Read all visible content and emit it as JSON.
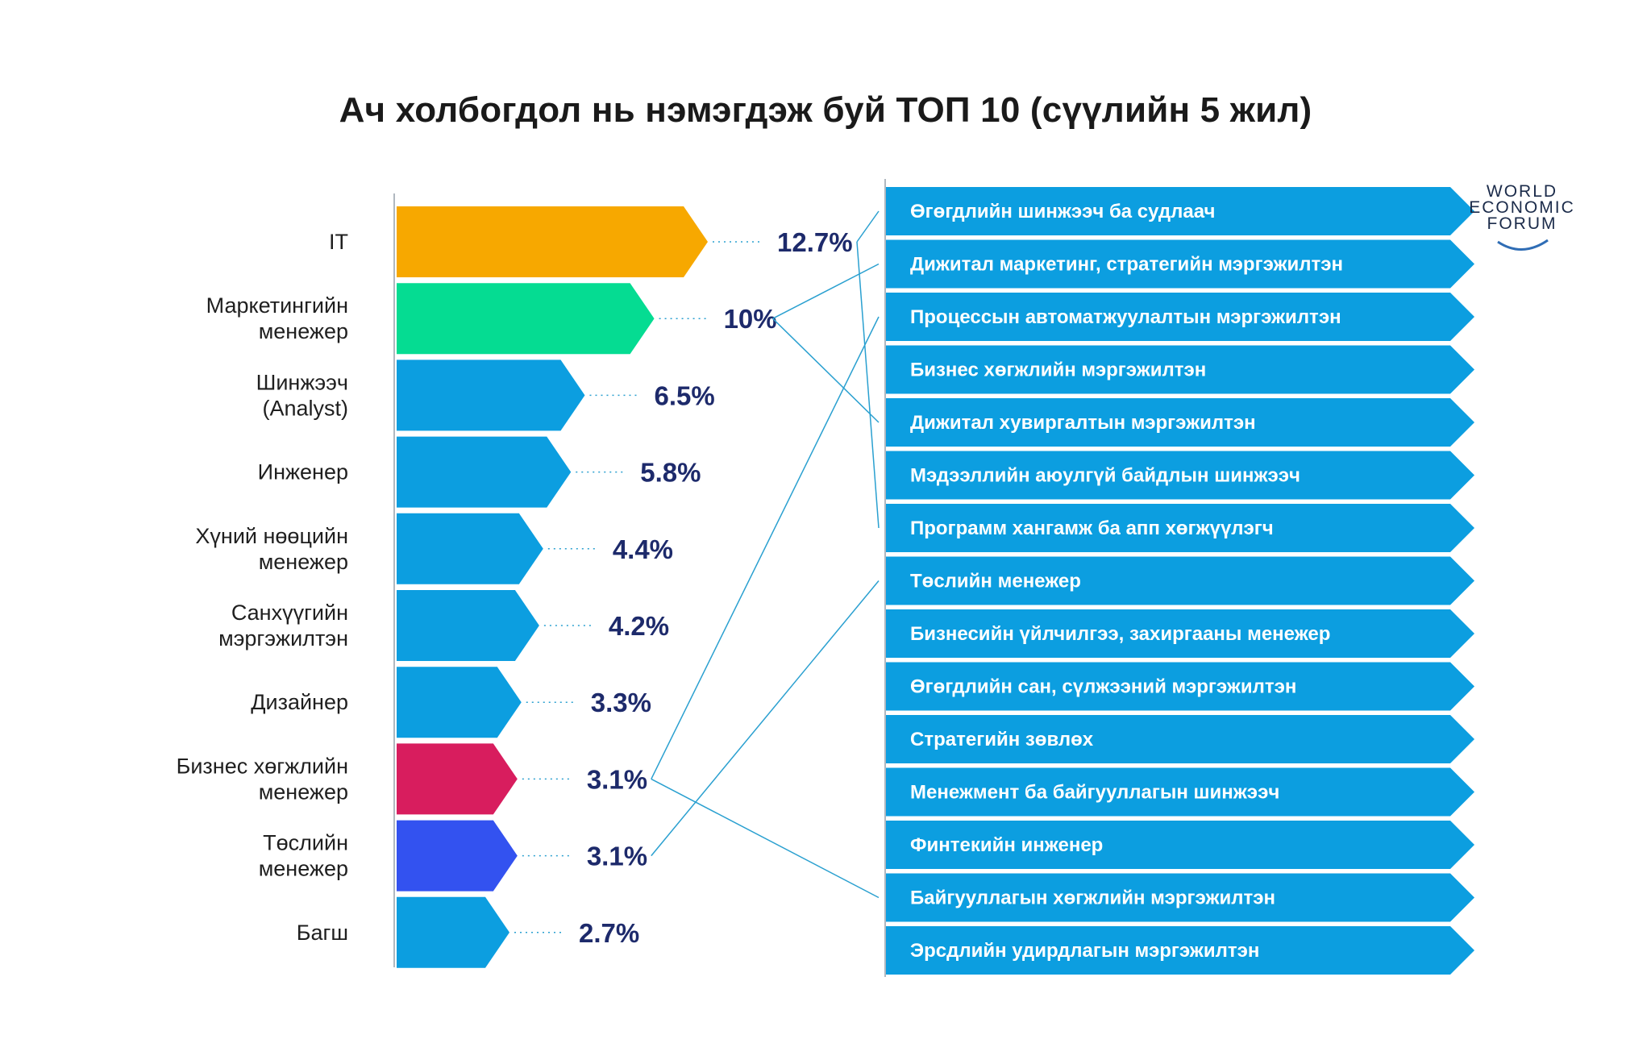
{
  "title": "Ач холбогдол нь нэмэгдэж буй ТОП 10 (сүүлийн 5 жил)",
  "logo": {
    "lines": [
      "WORLD",
      "ECONOMIC",
      "FORUM"
    ]
  },
  "colors": {
    "default_bar": "#0c9ee0",
    "IT": "#f7a800",
    "marketing": "#05dc92",
    "business_dev": "#d81d5e",
    "project": "#3352f0",
    "value_text": "#1d2a6b",
    "connector": "#2aa0d0"
  },
  "chart_data": [
    {
      "type": "bar",
      "orientation": "horizontal",
      "title": "Ач холбогдол нь нэмэгдэж буй ТОП 10 (сүүлийн 5 жил)",
      "categories": [
        "IT",
        "Маркетингийн менежер",
        "Шинжээч (Analyst)",
        "Инженер",
        "Хүний нөөцийн менежер",
        "Санхүүгийн мэргэжилтэн",
        "Дизайнер",
        "Бизнес хөгжлийн менежер",
        "Төслийн менежер",
        "Багш"
      ],
      "category_lines": [
        [
          "IT"
        ],
        [
          "Маркетингийн",
          "менежер"
        ],
        [
          "Шинжээч",
          "(Analyst)"
        ],
        [
          "Инженер"
        ],
        [
          "Хүний нөөцийн",
          "менежер"
        ],
        [
          "Санхүүгийн",
          "мэргэжилтэн"
        ],
        [
          "Дизайнер"
        ],
        [
          "Бизнес хөгжлийн",
          "менежер"
        ],
        [
          "Төслийн",
          "менежер"
        ],
        [
          "Багш"
        ]
      ],
      "values": [
        12.7,
        10,
        6.5,
        5.8,
        4.4,
        4.2,
        3.3,
        3.1,
        3.1,
        2.7
      ],
      "value_labels": [
        "12.7%",
        "10%",
        "6.5%",
        "5.8%",
        "4.4%",
        "4.2%",
        "3.3%",
        "3.1%",
        "3.1%",
        "2.7%"
      ],
      "bar_colors": [
        "#f7a800",
        "#05dc92",
        "#0c9ee0",
        "#0c9ee0",
        "#0c9ee0",
        "#0c9ee0",
        "#0c9ee0",
        "#d81d5e",
        "#3352f0",
        "#0c9ee0"
      ],
      "unit": "%"
    },
    {
      "type": "table",
      "rows": [
        "Өгөгдлийн шинжээч ба судлаач",
        "Дижитал маркетинг, стратегийн мэргэжилтэн",
        "Процессын автоматжуулалтын мэргэжилтэн",
        "Бизнес хөгжлийн мэргэжилтэн",
        "Дижитал хувиргалтын мэргэжилтэн",
        "Мэдээллийн аюулгүй байдлын шинжээч",
        "Программ хангамж ба апп хөгжүүлэгч",
        "Төслийн менежер",
        "Бизнесийн үйлчилгээ, захиргааны менежер",
        "Өгөгдлийн сан, сүлжээний мэргэжилтэн",
        "Стратегийн зөвлөх",
        "Менежмент ба байгууллагын шинжээч",
        "Финтекийн инженер",
        "Байгууллагын хөгжлийн мэргэжилтэн",
        "Эрсдлийн удирдлагын мэргэжилтэн"
      ],
      "links": [
        {
          "from": "IT",
          "to": [
            "Өгөгдлийн шинжээч ба судлаач",
            "Программ хангамж ба апп хөгжүүлэгч"
          ]
        },
        {
          "from": "Маркетингийн менежер",
          "to": [
            "Дижитал маркетинг, стратегийн мэргэжилтэн",
            "Дижитал хувиргалтын мэргэжилтэн"
          ]
        },
        {
          "from": "Бизнес хөгжлийн менежер",
          "to": [
            "Процессын автоматжуулалтын мэргэжилтэн",
            "Байгууллагын хөгжлийн мэргэжилтэн"
          ]
        },
        {
          "from": "Төслийн менежер",
          "to": [
            "Төслийн менежер"
          ]
        }
      ]
    }
  ]
}
